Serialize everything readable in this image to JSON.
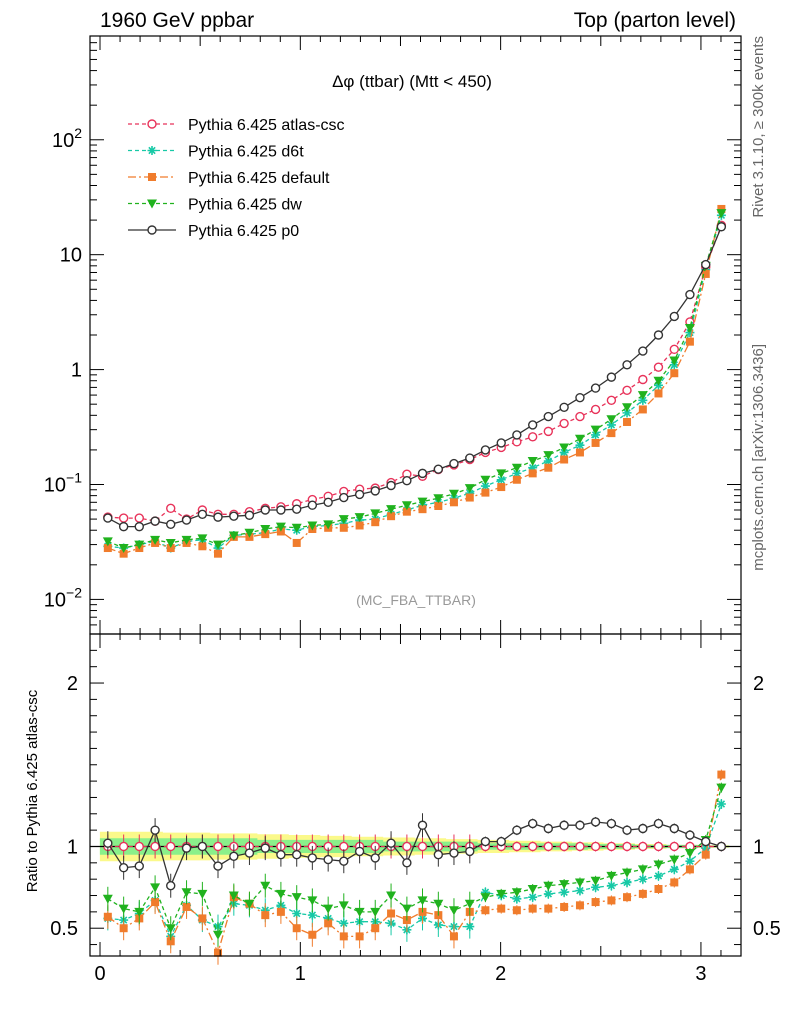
{
  "header": {
    "left": "1960 GeV ppbar",
    "right": "Top (parton level)"
  },
  "side_labels": {
    "rivet": "Rivet 3.1.10, ≥ 300k events",
    "mcplots": "mcplots.cern.ch [arXiv:1306.3436]"
  },
  "watermark": "(MC_FBA_TTBAR)",
  "chart_data": {
    "type": "line",
    "title": "Δφ (ttbar) (Mtt < 450)",
    "x": [
      0.039,
      0.118,
      0.196,
      0.275,
      0.353,
      0.432,
      0.511,
      0.589,
      0.668,
      0.746,
      0.825,
      0.903,
      0.982,
      1.06,
      1.139,
      1.217,
      1.296,
      1.374,
      1.453,
      1.532,
      1.61,
      1.689,
      1.767,
      1.846,
      1.924,
      2.003,
      2.081,
      2.16,
      2.238,
      2.317,
      2.396,
      2.474,
      2.553,
      2.631,
      2.71,
      2.788,
      2.867,
      2.945,
      3.024,
      3.102
    ],
    "xlim": [
      -0.05,
      3.2
    ],
    "main_panel": {
      "yscale": "log",
      "ylim": [
        0.005,
        800
      ],
      "yticks": [
        "10^-2",
        "10^-1",
        "1",
        "10",
        "10^2"
      ],
      "legend_position": "top-left"
    },
    "ratio_panel": {
      "ylabel": "Ratio to Pythia 6.425 atlas-csc",
      "ylim": [
        0.33,
        2.3
      ],
      "yticks": [
        "0.5",
        "1",
        "2"
      ],
      "xticks": [
        "0",
        "1",
        "2",
        "3"
      ],
      "band_inner_halfwidth": [
        0.05,
        0.05,
        0.05,
        0.05,
        0.05,
        0.05,
        0.05,
        0.05,
        0.05,
        0.05,
        0.04,
        0.04,
        0.04,
        0.04,
        0.04,
        0.04,
        0.04,
        0.04,
        0.03,
        0.03,
        0.03,
        0.03,
        0.03,
        0.03,
        0.02,
        0.02,
        0.02,
        0.02,
        0.02,
        0.02,
        0.02,
        0.015,
        0.015,
        0.015,
        0.01,
        0.01,
        0.01,
        0.01,
        0.005,
        0.005
      ],
      "band_outer_halfwidth": [
        0.09,
        0.09,
        0.09,
        0.09,
        0.085,
        0.085,
        0.085,
        0.08,
        0.08,
        0.08,
        0.075,
        0.075,
        0.07,
        0.07,
        0.065,
        0.065,
        0.06,
        0.06,
        0.055,
        0.055,
        0.05,
        0.05,
        0.045,
        0.045,
        0.04,
        0.04,
        0.035,
        0.035,
        0.03,
        0.03,
        0.025,
        0.025,
        0.02,
        0.02,
        0.015,
        0.015,
        0.01,
        0.01,
        0.008,
        0.008
      ]
    },
    "series": [
      {
        "name": "Pythia 6.425 atlas-csc",
        "color": "#e8335a",
        "marker": "open-circle",
        "dash": "4,3",
        "values": [
          0.052,
          0.051,
          0.051,
          0.048,
          0.062,
          0.05,
          0.06,
          0.055,
          0.055,
          0.058,
          0.062,
          0.064,
          0.068,
          0.074,
          0.079,
          0.087,
          0.091,
          0.093,
          0.104,
          0.123,
          0.118,
          0.135,
          0.148,
          0.165,
          0.19,
          0.21,
          0.235,
          0.26,
          0.29,
          0.34,
          0.39,
          0.45,
          0.54,
          0.66,
          0.82,
          1.05,
          1.5,
          2.6,
          7.8,
          18
        ],
        "ratio": [
          1.0,
          1.0,
          1.0,
          1.0,
          1.0,
          1.0,
          1.0,
          1.0,
          1.0,
          1.0,
          1.0,
          1.0,
          1.0,
          1.0,
          1.0,
          1.0,
          1.0,
          1.0,
          1.0,
          1.0,
          1.0,
          1.0,
          1.0,
          1.0,
          1.0,
          1.0,
          1.0,
          1.0,
          1.0,
          1.0,
          1.0,
          1.0,
          1.0,
          1.0,
          1.0,
          1.0,
          1.0,
          1.0,
          1.0,
          1.0
        ]
      },
      {
        "name": "Pythia 6.425 d6t",
        "color": "#17c9a6",
        "marker": "star",
        "dash": "4,3",
        "values": [
          0.029,
          0.028,
          0.03,
          0.032,
          0.028,
          0.032,
          0.033,
          0.028,
          0.036,
          0.037,
          0.038,
          0.041,
          0.04,
          0.043,
          0.044,
          0.046,
          0.049,
          0.05,
          0.055,
          0.06,
          0.066,
          0.07,
          0.076,
          0.084,
          0.097,
          0.11,
          0.125,
          0.14,
          0.16,
          0.19,
          0.22,
          0.27,
          0.33,
          0.42,
          0.54,
          0.73,
          1.1,
          2.1,
          7.4,
          22
        ],
        "ratio": [
          0.56,
          0.55,
          0.59,
          0.67,
          0.45,
          0.64,
          0.55,
          0.51,
          0.65,
          0.64,
          0.61,
          0.64,
          0.59,
          0.58,
          0.56,
          0.53,
          0.54,
          0.54,
          0.53,
          0.49,
          0.56,
          0.52,
          0.51,
          0.51,
          0.72,
          0.7,
          0.68,
          0.69,
          0.71,
          0.72,
          0.73,
          0.75,
          0.76,
          0.78,
          0.8,
          0.82,
          0.86,
          0.91,
          0.99,
          1.26
        ]
      },
      {
        "name": "Pythia 6.425 default",
        "color": "#f07c2c",
        "marker": "filled-square",
        "dash": "8,3,2,3",
        "values": [
          0.028,
          0.025,
          0.028,
          0.031,
          0.028,
          0.031,
          0.029,
          0.025,
          0.035,
          0.035,
          0.037,
          0.039,
          0.031,
          0.041,
          0.042,
          0.042,
          0.044,
          0.047,
          0.053,
          0.058,
          0.061,
          0.065,
          0.07,
          0.077,
          0.085,
          0.095,
          0.11,
          0.125,
          0.14,
          0.165,
          0.19,
          0.23,
          0.28,
          0.35,
          0.45,
          0.62,
          0.93,
          1.75,
          6.8,
          25
        ],
        "ratio": [
          0.57,
          0.5,
          0.56,
          0.66,
          0.42,
          0.63,
          0.56,
          0.35,
          0.69,
          0.65,
          0.58,
          0.6,
          0.5,
          0.46,
          0.53,
          0.45,
          0.45,
          0.5,
          0.59,
          0.55,
          0.6,
          0.58,
          0.45,
          0.6,
          0.61,
          0.62,
          0.61,
          0.62,
          0.62,
          0.63,
          0.64,
          0.66,
          0.67,
          0.69,
          0.71,
          0.74,
          0.78,
          0.86,
          0.95,
          1.44
        ]
      },
      {
        "name": "Pythia 6.425 dw",
        "color": "#20b21e",
        "marker": "filled-triangle-down",
        "dash": "4,3",
        "values": [
          0.032,
          0.028,
          0.03,
          0.033,
          0.031,
          0.033,
          0.034,
          0.03,
          0.036,
          0.038,
          0.041,
          0.043,
          0.042,
          0.044,
          0.045,
          0.05,
          0.052,
          0.056,
          0.061,
          0.066,
          0.071,
          0.076,
          0.083,
          0.093,
          0.11,
          0.125,
          0.14,
          0.16,
          0.18,
          0.21,
          0.25,
          0.3,
          0.37,
          0.47,
          0.6,
          0.8,
          1.2,
          2.3,
          8.0,
          23
        ],
        "ratio": [
          0.68,
          0.62,
          0.6,
          0.75,
          0.5,
          0.72,
          0.71,
          0.46,
          0.7,
          0.65,
          0.76,
          0.71,
          0.69,
          0.67,
          0.62,
          0.64,
          0.6,
          0.6,
          0.7,
          0.62,
          0.67,
          0.65,
          0.61,
          0.65,
          0.69,
          0.71,
          0.72,
          0.74,
          0.76,
          0.77,
          0.78,
          0.79,
          0.82,
          0.84,
          0.86,
          0.89,
          0.92,
          0.96,
          1.04,
          1.36
        ]
      },
      {
        "name": "Pythia 6.425 p0",
        "color": "#333333",
        "marker": "open-circle",
        "dash": "",
        "values": [
          0.051,
          0.043,
          0.043,
          0.048,
          0.045,
          0.049,
          0.055,
          0.052,
          0.053,
          0.054,
          0.06,
          0.06,
          0.061,
          0.066,
          0.07,
          0.077,
          0.082,
          0.088,
          0.098,
          0.108,
          0.125,
          0.136,
          0.152,
          0.17,
          0.2,
          0.23,
          0.27,
          0.33,
          0.39,
          0.47,
          0.57,
          0.69,
          0.86,
          1.1,
          1.45,
          2.0,
          2.9,
          4.5,
          8.2,
          17.5
        ],
        "ratio": [
          1.02,
          0.87,
          0.88,
          1.1,
          0.76,
          0.99,
          1.0,
          0.88,
          0.94,
          0.96,
          0.99,
          0.95,
          0.95,
          0.93,
          0.92,
          0.91,
          0.97,
          0.93,
          1.02,
          0.9,
          1.13,
          0.95,
          0.96,
          0.97,
          1.03,
          1.03,
          1.1,
          1.14,
          1.11,
          1.13,
          1.13,
          1.15,
          1.14,
          1.1,
          1.11,
          1.14,
          1.11,
          1.07,
          1.03,
          1.0
        ]
      }
    ]
  }
}
